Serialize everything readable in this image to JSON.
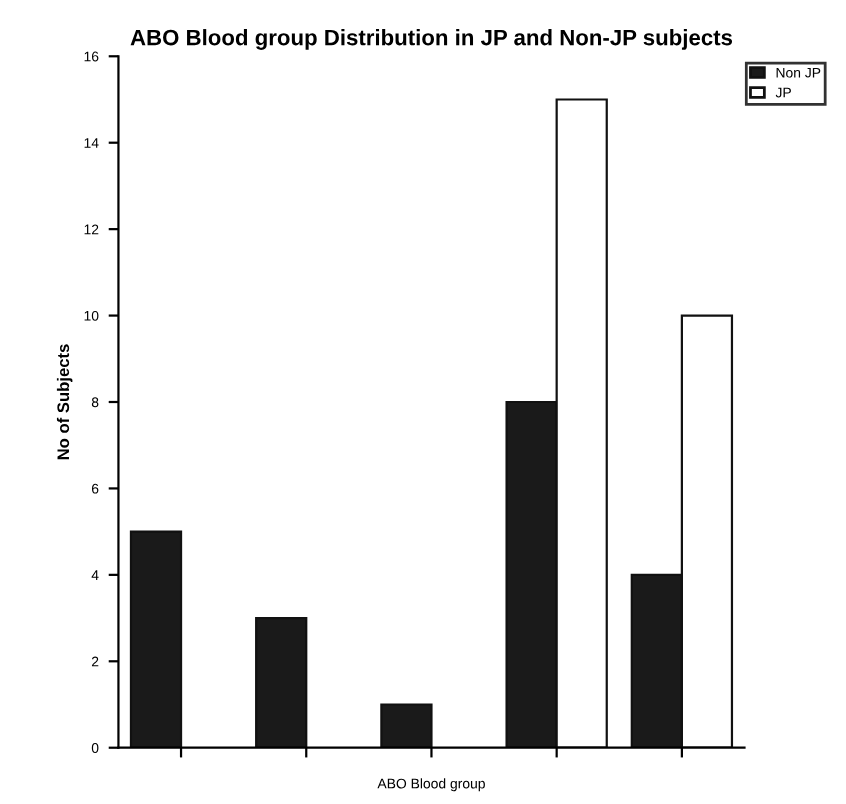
{
  "chart_data": {
    "type": "bar",
    "title": "ABO Blood group Distribution in JP and Non-JP subjects",
    "xlabel": "ABO Blood group",
    "ylabel": "No of Subjects",
    "categories": [
      null,
      null,
      null,
      null,
      null
    ],
    "series": [
      {
        "name": "Non JP",
        "color": "#1a1a1a",
        "values": [
          5,
          3,
          1,
          8,
          4
        ]
      },
      {
        "name": "JP",
        "color": "#ffffff",
        "values": [
          null,
          null,
          null,
          15,
          10
        ]
      }
    ],
    "ylim": [
      0,
      16
    ],
    "yticks": [
      0,
      2,
      4,
      6,
      8,
      10,
      12,
      14,
      16
    ],
    "legend": "top right",
    "grid": false
  }
}
